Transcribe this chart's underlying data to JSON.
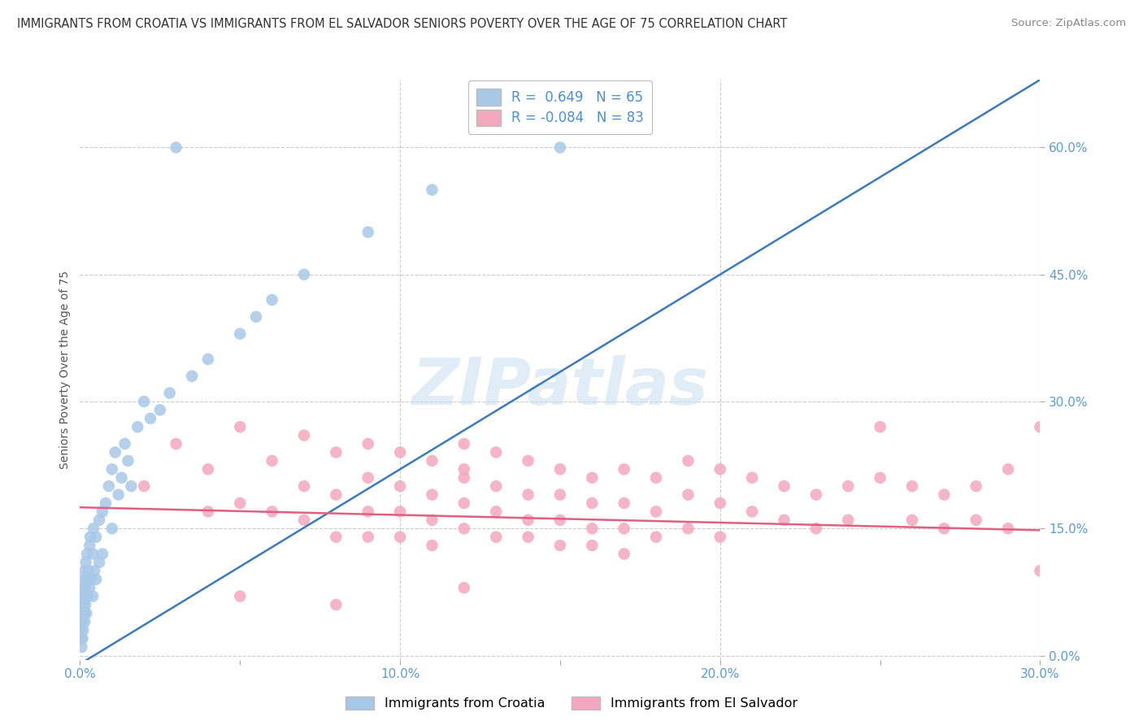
{
  "title": "IMMIGRANTS FROM CROATIA VS IMMIGRANTS FROM EL SALVADOR SENIORS POVERTY OVER THE AGE OF 75 CORRELATION CHART",
  "source": "Source: ZipAtlas.com",
  "ylabel": "Seniors Poverty Over the Age of 75",
  "xlim": [
    0.0,
    0.3
  ],
  "ylim": [
    -0.005,
    0.68
  ],
  "xtick_values": [
    0.0,
    0.05,
    0.1,
    0.15,
    0.2,
    0.25,
    0.3
  ],
  "ytick_right_vals": [
    0.0,
    0.15,
    0.3,
    0.45,
    0.6
  ],
  "ytick_right_labels": [
    "0.0%",
    "15.0%",
    "30.0%",
    "45.0%",
    "60.0%"
  ],
  "grid_color": "#cccccc",
  "bg_color": "#ffffff",
  "croatia_color": "#a8c8e8",
  "el_salvador_color": "#f4a8be",
  "croatia_line_color": "#3a7abf",
  "el_salvador_line_color": "#e06080",
  "croatia_R": 0.649,
  "croatia_N": 65,
  "el_salvador_R": -0.084,
  "el_salvador_N": 83,
  "legend_label_croatia": "Immigrants from Croatia",
  "legend_label_el_salvador": "Immigrants from El Salvador",
  "croatia_scatter_x": [
    0.0002,
    0.0003,
    0.0004,
    0.0005,
    0.0005,
    0.0006,
    0.0007,
    0.0008,
    0.0008,
    0.0009,
    0.001,
    0.001,
    0.001,
    0.0012,
    0.0013,
    0.0014,
    0.0015,
    0.0015,
    0.0016,
    0.0017,
    0.0018,
    0.002,
    0.002,
    0.0022,
    0.0023,
    0.0025,
    0.003,
    0.003,
    0.0032,
    0.0035,
    0.004,
    0.004,
    0.0042,
    0.0045,
    0.005,
    0.005,
    0.006,
    0.006,
    0.007,
    0.007,
    0.008,
    0.009,
    0.01,
    0.01,
    0.011,
    0.012,
    0.013,
    0.014,
    0.015,
    0.016,
    0.018,
    0.02,
    0.022,
    0.025,
    0.028,
    0.03,
    0.035,
    0.04,
    0.05,
    0.055,
    0.06,
    0.07,
    0.09,
    0.11,
    0.15
  ],
  "croatia_scatter_y": [
    0.02,
    0.04,
    0.03,
    0.05,
    0.01,
    0.06,
    0.04,
    0.07,
    0.02,
    0.05,
    0.08,
    0.03,
    0.06,
    0.09,
    0.05,
    0.07,
    0.1,
    0.04,
    0.08,
    0.06,
    0.11,
    0.09,
    0.05,
    0.12,
    0.07,
    0.1,
    0.13,
    0.08,
    0.14,
    0.09,
    0.12,
    0.07,
    0.15,
    0.1,
    0.14,
    0.09,
    0.16,
    0.11,
    0.17,
    0.12,
    0.18,
    0.2,
    0.22,
    0.15,
    0.24,
    0.19,
    0.21,
    0.25,
    0.23,
    0.2,
    0.27,
    0.3,
    0.28,
    0.29,
    0.31,
    0.6,
    0.33,
    0.35,
    0.38,
    0.4,
    0.42,
    0.45,
    0.5,
    0.55,
    0.6
  ],
  "el_salvador_scatter_x": [
    0.02,
    0.03,
    0.04,
    0.04,
    0.05,
    0.05,
    0.06,
    0.06,
    0.07,
    0.07,
    0.07,
    0.08,
    0.08,
    0.08,
    0.09,
    0.09,
    0.09,
    0.09,
    0.1,
    0.1,
    0.1,
    0.1,
    0.11,
    0.11,
    0.11,
    0.11,
    0.12,
    0.12,
    0.12,
    0.12,
    0.12,
    0.13,
    0.13,
    0.13,
    0.13,
    0.14,
    0.14,
    0.14,
    0.14,
    0.15,
    0.15,
    0.15,
    0.15,
    0.16,
    0.16,
    0.16,
    0.16,
    0.17,
    0.17,
    0.17,
    0.17,
    0.18,
    0.18,
    0.18,
    0.19,
    0.19,
    0.19,
    0.2,
    0.2,
    0.2,
    0.21,
    0.21,
    0.22,
    0.22,
    0.23,
    0.23,
    0.24,
    0.24,
    0.25,
    0.25,
    0.26,
    0.26,
    0.27,
    0.27,
    0.28,
    0.28,
    0.29,
    0.29,
    0.3,
    0.3,
    0.05,
    0.08,
    0.12
  ],
  "el_salvador_scatter_y": [
    0.2,
    0.25,
    0.22,
    0.17,
    0.27,
    0.18,
    0.23,
    0.17,
    0.26,
    0.2,
    0.16,
    0.24,
    0.19,
    0.14,
    0.25,
    0.21,
    0.17,
    0.14,
    0.24,
    0.2,
    0.17,
    0.14,
    0.23,
    0.19,
    0.16,
    0.13,
    0.25,
    0.21,
    0.18,
    0.15,
    0.22,
    0.24,
    0.2,
    0.17,
    0.14,
    0.23,
    0.19,
    0.16,
    0.14,
    0.22,
    0.19,
    0.16,
    0.13,
    0.21,
    0.18,
    0.15,
    0.13,
    0.22,
    0.18,
    0.15,
    0.12,
    0.21,
    0.17,
    0.14,
    0.23,
    0.19,
    0.15,
    0.22,
    0.18,
    0.14,
    0.21,
    0.17,
    0.2,
    0.16,
    0.19,
    0.15,
    0.2,
    0.16,
    0.27,
    0.21,
    0.2,
    0.16,
    0.19,
    0.15,
    0.2,
    0.16,
    0.22,
    0.15,
    0.27,
    0.1,
    0.07,
    0.06,
    0.08
  ],
  "croatia_trendline_x": [
    0.0,
    0.3
  ],
  "croatia_trendline_y": [
    -0.01,
    0.68
  ],
  "el_salvador_trendline_x": [
    0.0,
    0.3
  ],
  "el_salvador_trendline_y": [
    0.175,
    0.148
  ]
}
